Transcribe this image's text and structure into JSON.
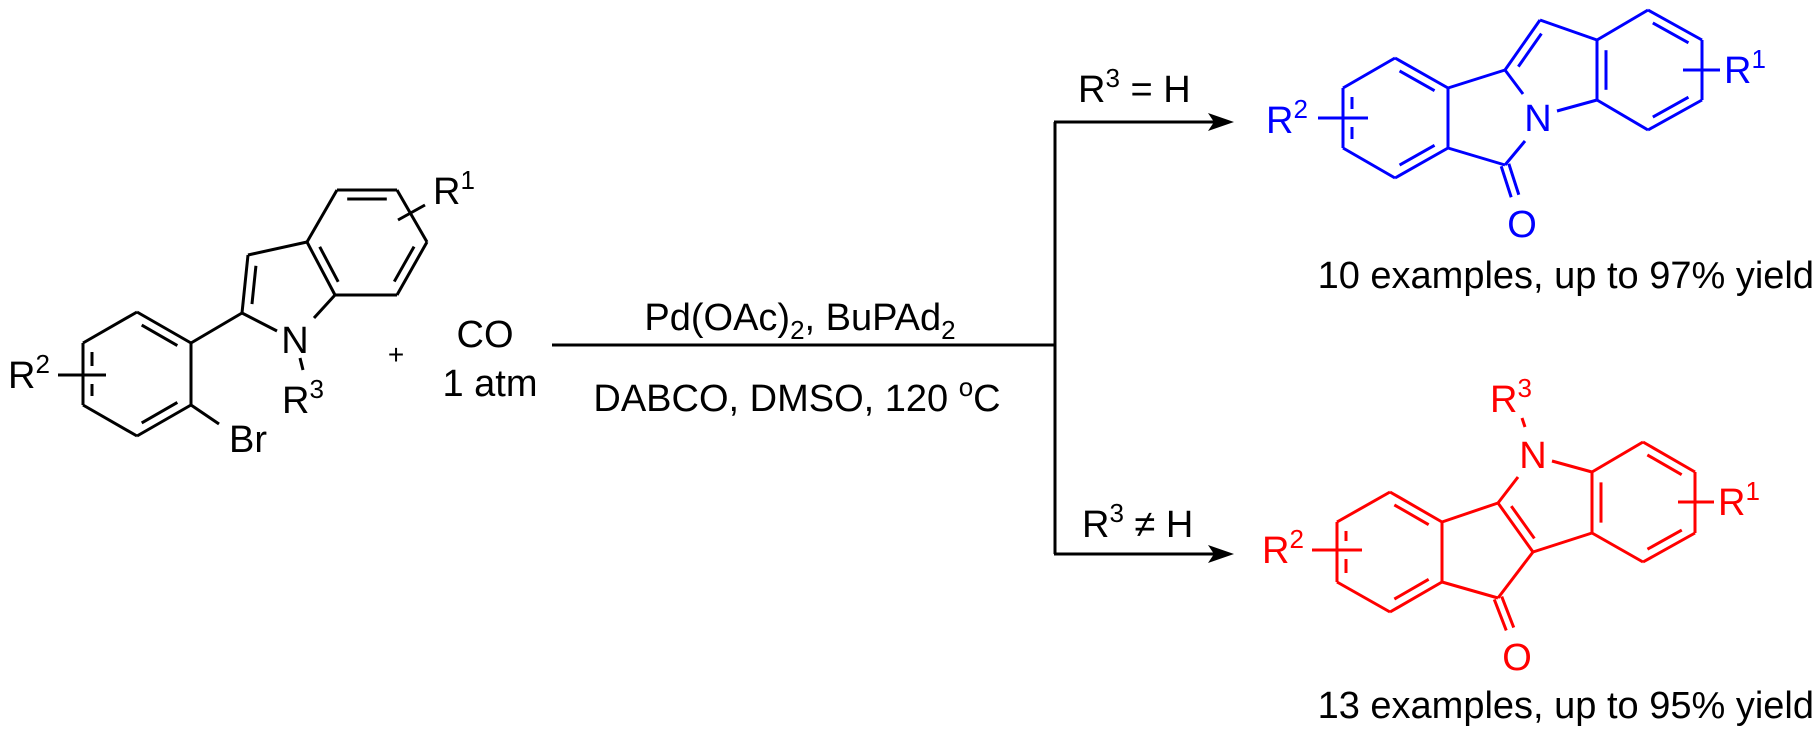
{
  "colors": {
    "reactant": "#000000",
    "product_r3_h": "#0000ff",
    "product_r3_not_h": "#ff0000"
  },
  "reactant": {
    "r1": {
      "base": "R",
      "sup": "1"
    },
    "r2": {
      "base": "R",
      "sup": "2"
    },
    "r3": {
      "base": "R",
      "sup": "3"
    },
    "nitrogen": "N",
    "bromine": "Br"
  },
  "plus": "+",
  "co_reagent": {
    "formula": "CO",
    "pressure": "1 atm"
  },
  "conditions": {
    "above": [
      "Pd(OAc)",
      "2",
      ", BuPAd",
      "2"
    ],
    "below": [
      "DABCO, DMSO, 120 ",
      "o",
      "C"
    ]
  },
  "branch_top": {
    "label_base": "R",
    "label_sup": "3",
    "label_rest": " = H"
  },
  "branch_bottom": {
    "label_base": "R",
    "label_sup": "3",
    "label_rest": " ≠ H"
  },
  "product_top": {
    "r1": {
      "base": "R",
      "sup": "1"
    },
    "r2": {
      "base": "R",
      "sup": "2"
    },
    "nitrogen": "N",
    "oxygen": "O",
    "summary": "10 examples, up to 97% yield"
  },
  "product_bottom": {
    "r1": {
      "base": "R",
      "sup": "1"
    },
    "r2": {
      "base": "R",
      "sup": "2"
    },
    "r3": {
      "base": "R",
      "sup": "3"
    },
    "nitrogen": "N",
    "oxygen": "O",
    "summary": "13 examples, up to 95% yield"
  }
}
